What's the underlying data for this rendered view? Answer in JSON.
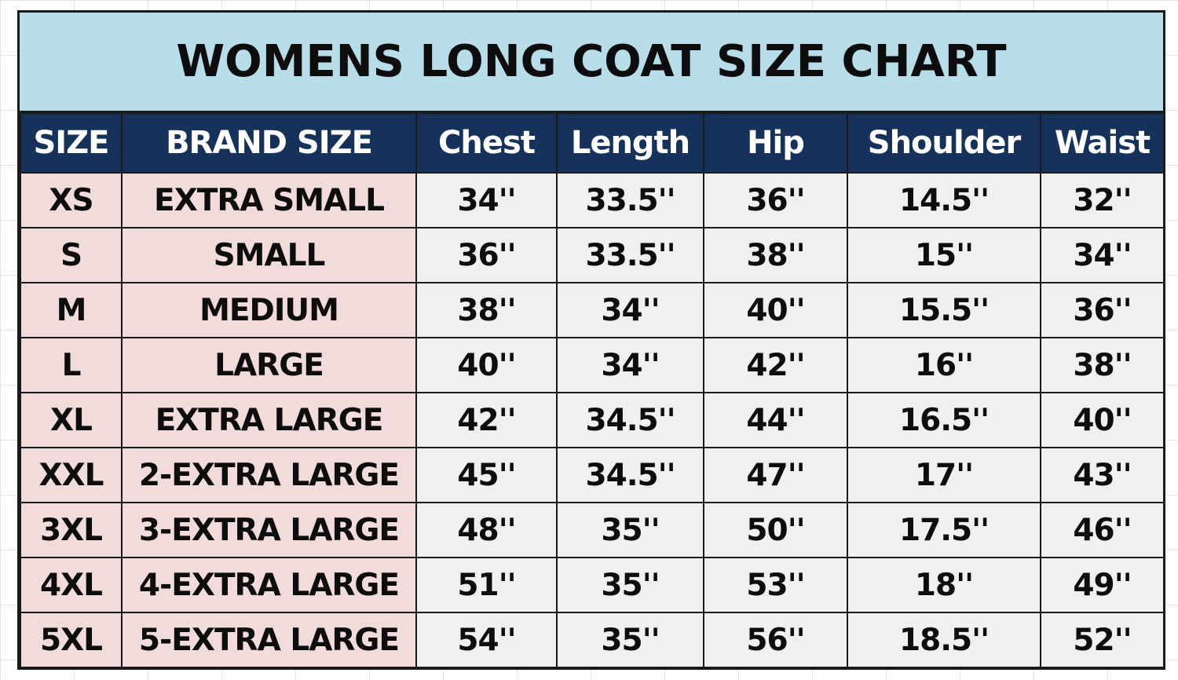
{
  "title": "WOMENS LONG COAT SIZE CHART",
  "colors": {
    "title_bg": "#b7dee8",
    "header_bg": "#17325a",
    "header_text": "#ffffff",
    "size_col_bg": "#f2dcdb",
    "measure_col_bg": "#f0f0f0"
  },
  "headers": [
    "SIZE",
    "BRAND SIZE",
    "Chest",
    "Length",
    "Hip",
    "Shoulder",
    "Waist"
  ],
  "rows": [
    [
      "XS",
      "EXTRA SMALL",
      "34''",
      "33.5''",
      "36''",
      "14.5''",
      "32''"
    ],
    [
      "S",
      "SMALL",
      "36''",
      "33.5''",
      "38''",
      "15''",
      "34''"
    ],
    [
      "M",
      "MEDIUM",
      "38''",
      "34''",
      "40''",
      "15.5''",
      "36''"
    ],
    [
      "L",
      "LARGE",
      "40''",
      "34''",
      "42''",
      "16''",
      "38''"
    ],
    [
      "XL",
      "EXTRA LARGE",
      "42''",
      "34.5''",
      "44''",
      "16.5''",
      "40''"
    ],
    [
      "XXL",
      "2-EXTRA LARGE",
      "45''",
      "34.5''",
      "47''",
      "17''",
      "43''"
    ],
    [
      "3XL",
      "3-EXTRA LARGE",
      "48''",
      "35''",
      "50''",
      "17.5''",
      "46''"
    ],
    [
      "4XL",
      "4-EXTRA LARGE",
      "51''",
      "35''",
      "53''",
      "18''",
      "49''"
    ],
    [
      "5XL",
      "5-EXTRA LARGE",
      "54''",
      "35''",
      "56''",
      "18.5''",
      "52''"
    ]
  ]
}
